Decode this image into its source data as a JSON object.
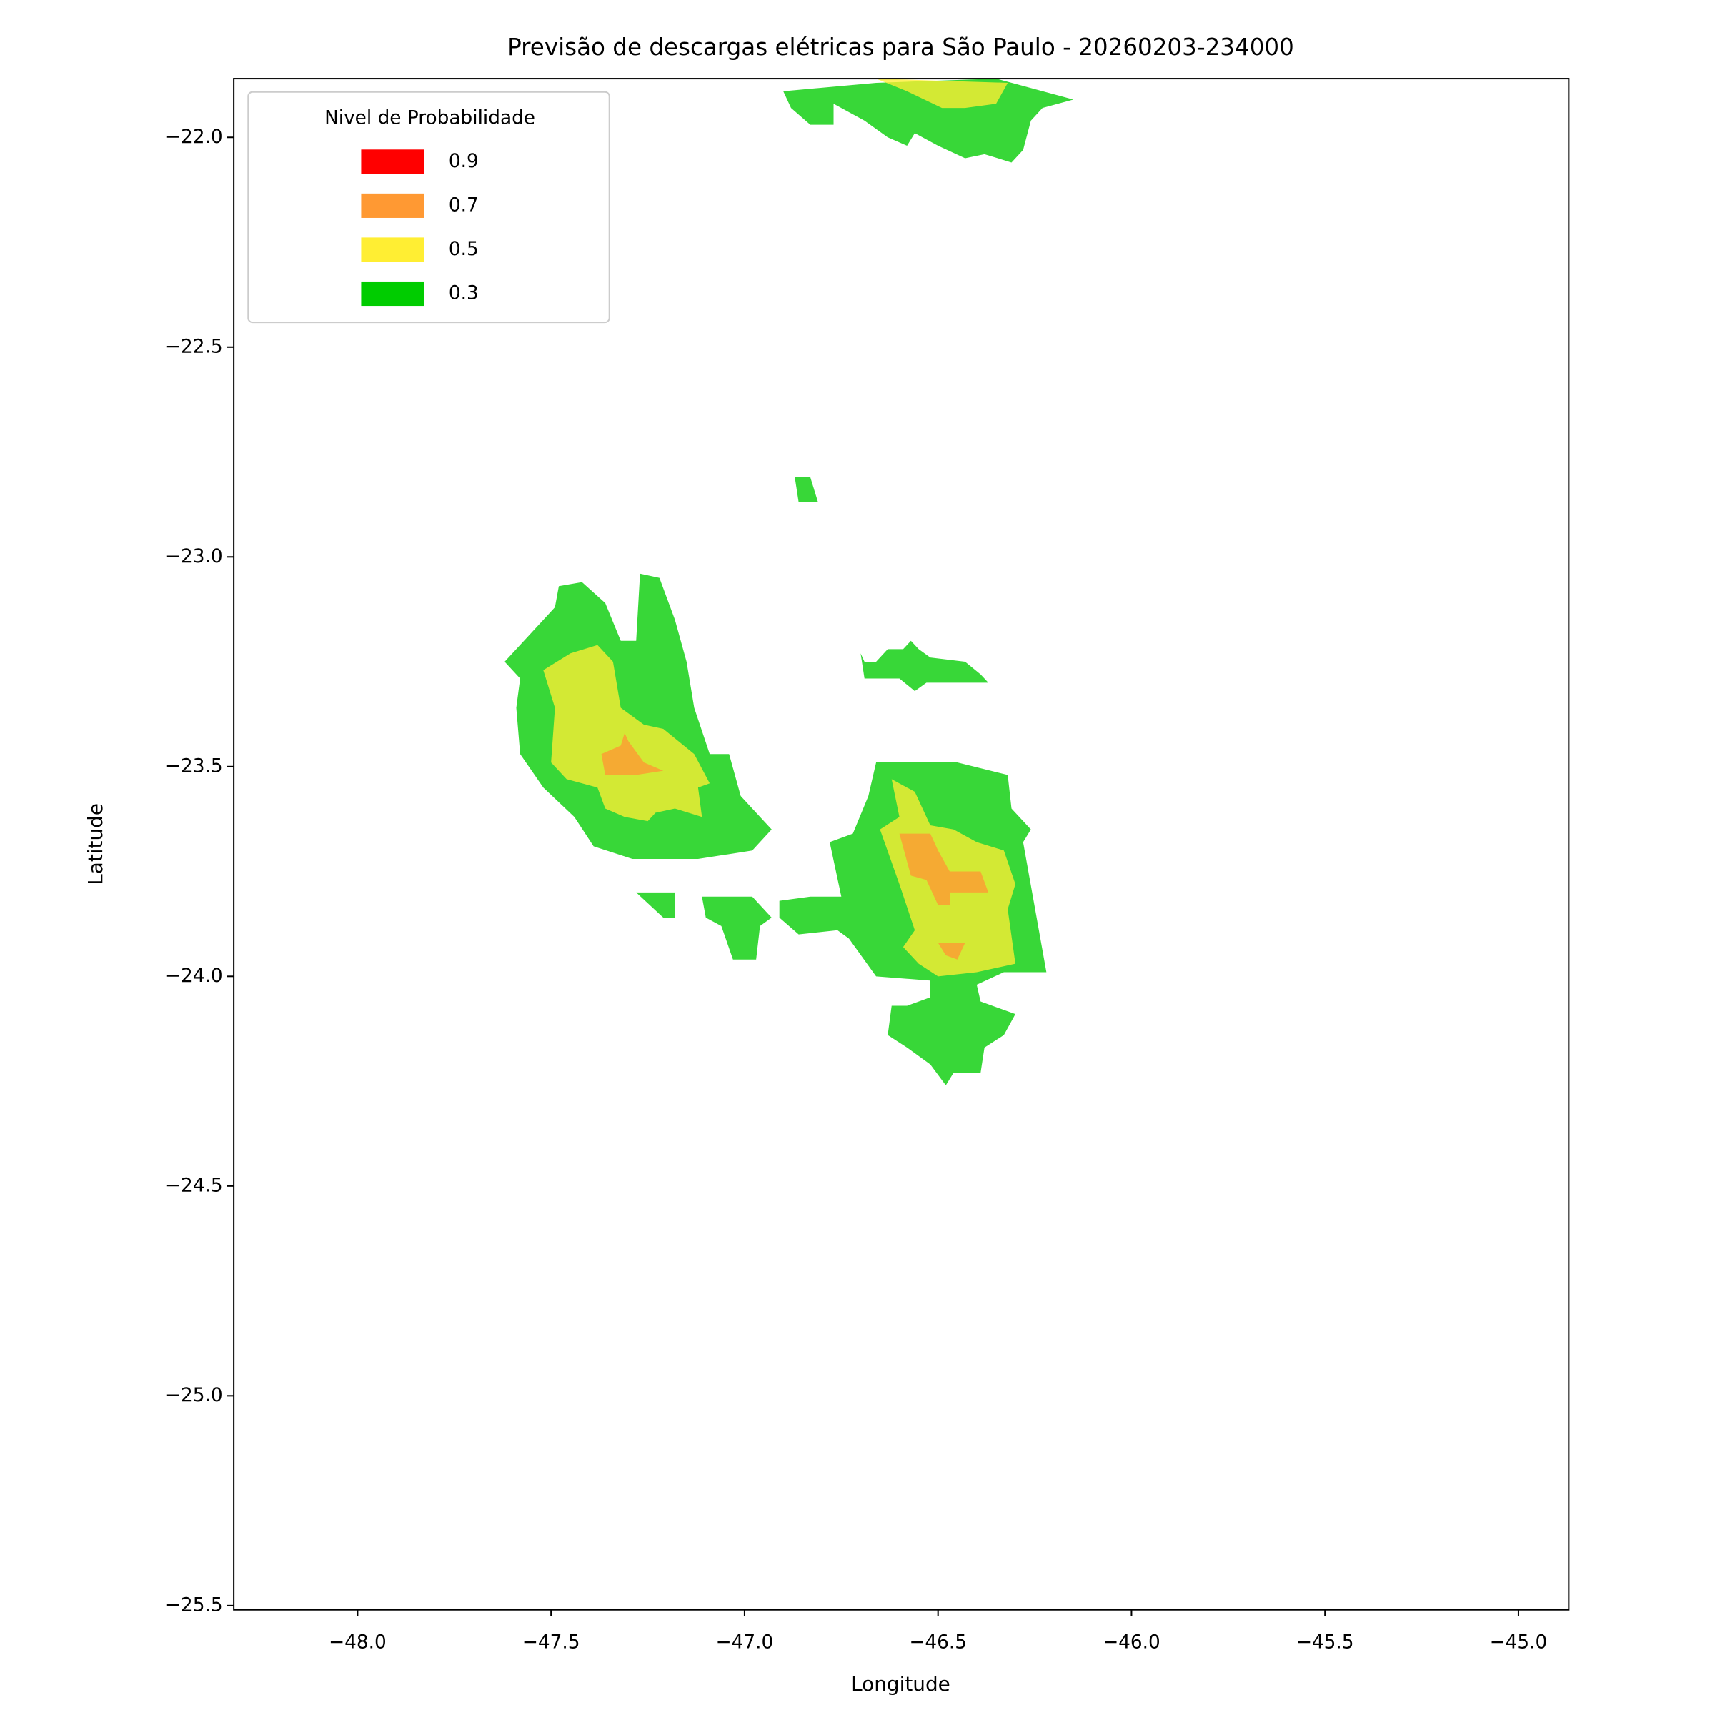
{
  "chart_data": {
    "type": "contourf",
    "title": "Previsão de descargas elétricas para São Paulo - 20260203-234000",
    "x_label": "Longitude",
    "y_label": "Latitude",
    "legend_title": "Nivel de Probabilidade",
    "legend_position": "upper left",
    "xlim": [
      -48.32,
      -44.87
    ],
    "ylim": [
      -25.51,
      -21.86
    ],
    "xticks": [
      {
        "value": -48.0,
        "label": "−48.0"
      },
      {
        "value": -47.5,
        "label": "−47.5"
      },
      {
        "value": -47.0,
        "label": "−47.0"
      },
      {
        "value": -46.5,
        "label": "−46.5"
      },
      {
        "value": -46.0,
        "label": "−46.0"
      },
      {
        "value": -45.5,
        "label": "−45.5"
      },
      {
        "value": -45.0,
        "label": "−45.0"
      }
    ],
    "yticks": [
      {
        "value": -22.0,
        "label": "−22.0"
      },
      {
        "value": -22.5,
        "label": "−22.5"
      },
      {
        "value": -23.0,
        "label": "−23.0"
      },
      {
        "value": -23.5,
        "label": "−23.5"
      },
      {
        "value": -24.0,
        "label": "−24.0"
      },
      {
        "value": -24.5,
        "label": "−24.5"
      },
      {
        "value": -25.0,
        "label": "−25.0"
      },
      {
        "value": -25.5,
        "label": "−25.5"
      }
    ],
    "series": [
      {
        "name": "0.9",
        "color": "#ff0000",
        "polygons": []
      },
      {
        "name": "0.7",
        "color": "#ff9933",
        "polygons": [
          {
            "lon": [
              -47.37,
              -47.32,
              -47.31,
              -47.3,
              -47.26,
              -47.21,
              -47.28,
              -47.36
            ],
            "lat": [
              -23.47,
              -23.45,
              -23.42,
              -23.44,
              -23.49,
              -23.51,
              -23.52,
              -23.52
            ]
          },
          {
            "lon": [
              -46.6,
              -46.52,
              -46.5,
              -46.47,
              -46.39,
              -46.37,
              -46.43,
              -46.47,
              -46.47,
              -46.5,
              -46.53,
              -46.57
            ],
            "lat": [
              -23.66,
              -23.66,
              -23.7,
              -23.75,
              -23.75,
              -23.8,
              -23.8,
              -23.8,
              -23.83,
              -23.83,
              -23.77,
              -23.76
            ]
          },
          {
            "lon": [
              -46.5,
              -46.43,
              -46.45,
              -46.48
            ],
            "lat": [
              -23.92,
              -23.92,
              -23.96,
              -23.95
            ]
          }
        ]
      },
      {
        "name": "0.5",
        "color": "#ffee33",
        "polygons": [
          {
            "lon": [
              -46.66,
              -46.32,
              -46.35,
              -46.43,
              -46.49,
              -46.58
            ],
            "lat": [
              -21.86,
              -21.87,
              -21.92,
              -21.93,
              -21.93,
              -21.89
            ]
          },
          {
            "lon": [
              -47.52,
              -47.45,
              -47.38,
              -47.34,
              -47.32,
              -47.26,
              -47.21,
              -47.13,
              -47.09,
              -47.12,
              -47.11,
              -47.18,
              -47.23,
              -47.25,
              -47.31,
              -47.36,
              -47.38,
              -47.46,
              -47.5,
              -47.49
            ],
            "lat": [
              -23.27,
              -23.23,
              -23.21,
              -23.25,
              -23.36,
              -23.4,
              -23.41,
              -23.47,
              -23.54,
              -23.55,
              -23.62,
              -23.6,
              -23.61,
              -23.63,
              -23.62,
              -23.6,
              -23.55,
              -23.53,
              -23.49,
              -23.36
            ]
          },
          {
            "lon": [
              -46.62,
              -46.56,
              -46.52,
              -46.46,
              -46.4,
              -46.33,
              -46.3,
              -46.32,
              -46.3,
              -46.4,
              -46.5,
              -46.55,
              -46.59,
              -46.56,
              -46.6,
              -46.65,
              -46.6
            ],
            "lat": [
              -23.53,
              -23.56,
              -23.64,
              -23.65,
              -23.68,
              -23.7,
              -23.78,
              -23.84,
              -23.97,
              -23.99,
              -24.0,
              -23.97,
              -23.93,
              -23.89,
              -23.78,
              -23.65,
              -23.62
            ]
          }
        ]
      },
      {
        "name": "0.3",
        "color": "#00cc00",
        "polygons": [
          {
            "lon": [
              -46.9,
              -46.66,
              -46.35,
              -46.15,
              -46.23,
              -46.26,
              -46.28,
              -46.31,
              -46.38,
              -46.43,
              -46.5,
              -46.56,
              -46.58,
              -46.63,
              -46.69,
              -46.77,
              -46.77,
              -46.83,
              -46.88
            ],
            "lat": [
              -21.89,
              -21.87,
              -21.86,
              -21.91,
              -21.93,
              -21.96,
              -22.03,
              -22.06,
              -22.04,
              -22.05,
              -22.02,
              -21.99,
              -22.02,
              -22.0,
              -21.96,
              -21.92,
              -21.97,
              -21.97,
              -21.93
            ]
          },
          {
            "lon": [
              -46.87,
              -46.83,
              -46.81,
              -46.86
            ],
            "lat": [
              -22.81,
              -22.81,
              -22.87,
              -22.87
            ]
          },
          {
            "lon": [
              -47.62,
              -47.49,
              -47.48,
              -47.42,
              -47.36,
              -47.32,
              -47.28,
              -47.27,
              -47.22,
              -47.18,
              -47.15,
              -47.13,
              -47.09,
              -47.04,
              -47.01,
              -46.93,
              -46.98,
              -47.12,
              -47.29,
              -47.39,
              -47.44,
              -47.52,
              -47.58,
              -47.59,
              -47.58
            ],
            "lat": [
              -23.25,
              -23.12,
              -23.07,
              -23.06,
              -23.11,
              -23.2,
              -23.2,
              -23.04,
              -23.05,
              -23.15,
              -23.25,
              -23.36,
              -23.47,
              -23.47,
              -23.57,
              -23.65,
              -23.7,
              -23.72,
              -23.72,
              -23.69,
              -23.62,
              -23.55,
              -23.47,
              -23.36,
              -23.29
            ]
          },
          {
            "lon": [
              -46.7,
              -46.69,
              -46.66,
              -46.63,
              -46.59,
              -46.57,
              -46.55,
              -46.52,
              -46.43,
              -46.39,
              -46.37,
              -46.46,
              -46.53,
              -46.56,
              -46.6,
              -46.69
            ],
            "lat": [
              -23.23,
              -23.25,
              -23.25,
              -23.22,
              -23.22,
              -23.2,
              -23.22,
              -23.24,
              -23.25,
              -23.28,
              -23.3,
              -23.3,
              -23.3,
              -23.32,
              -23.29,
              -23.29
            ]
          },
          {
            "lon": [
              -47.28,
              -47.18,
              -47.18,
              -47.21
            ],
            "lat": [
              -23.8,
              -23.8,
              -23.86,
              -23.86
            ]
          },
          {
            "lon": [
              -47.11,
              -46.98,
              -46.93,
              -46.96,
              -46.97,
              -47.03,
              -47.06,
              -47.1
            ],
            "lat": [
              -23.81,
              -23.81,
              -23.86,
              -23.88,
              -23.96,
              -23.96,
              -23.88,
              -23.86
            ]
          },
          {
            "lon": [
              -46.66,
              -46.45,
              -46.32,
              -46.31,
              -46.26,
              -46.28,
              -46.22,
              -46.33,
              -46.4,
              -46.39,
              -46.3,
              -46.33,
              -46.38,
              -46.39,
              -46.46,
              -46.48,
              -46.52,
              -46.58,
              -46.63,
              -46.62,
              -46.58,
              -46.52,
              -46.52,
              -46.66,
              -46.73,
              -46.76,
              -46.86,
              -46.91,
              -46.91,
              -46.83,
              -46.75,
              -46.78,
              -46.72,
              -46.68
            ],
            "lat": [
              -23.49,
              -23.49,
              -23.52,
              -23.6,
              -23.65,
              -23.68,
              -23.99,
              -23.99,
              -24.02,
              -24.06,
              -24.09,
              -24.14,
              -24.17,
              -24.23,
              -24.23,
              -24.26,
              -24.21,
              -24.17,
              -24.14,
              -24.07,
              -24.07,
              -24.05,
              -24.01,
              -24.0,
              -23.91,
              -23.89,
              -23.9,
              -23.86,
              -23.82,
              -23.81,
              -23.81,
              -23.68,
              -23.66,
              -23.57
            ]
          }
        ]
      }
    ]
  }
}
